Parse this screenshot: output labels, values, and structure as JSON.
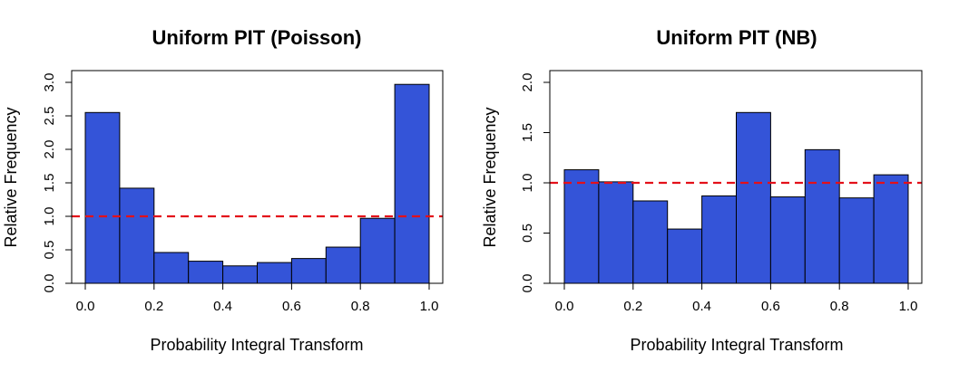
{
  "chart_data": [
    {
      "type": "bar",
      "title": "Uniform PIT (Poisson)",
      "xlabel": "Probability Integral Transform",
      "ylabel": "Relative Frequency",
      "xlim": [
        0,
        1
      ],
      "ylim": [
        0,
        3.0
      ],
      "bin_edges": [
        0.0,
        0.1,
        0.2,
        0.3,
        0.4,
        0.5,
        0.6,
        0.7,
        0.8,
        0.9,
        1.0
      ],
      "values": [
        2.55,
        1.42,
        0.46,
        0.33,
        0.26,
        0.31,
        0.37,
        0.54,
        0.97,
        2.97
      ],
      "reference_line": 1.0,
      "xticks": [
        "0.0",
        "0.2",
        "0.4",
        "0.6",
        "0.8",
        "1.0"
      ],
      "yticks": [
        "0.0",
        "0.5",
        "1.0",
        "1.5",
        "2.0",
        "2.5",
        "3.0"
      ],
      "bar_color": "#3454d8",
      "line_color": "#e3101a"
    },
    {
      "type": "bar",
      "title": "Uniform PIT (NB)",
      "xlabel": "Probability Integral Transform",
      "ylabel": "Relative Frequency",
      "xlim": [
        0,
        1
      ],
      "ylim": [
        0,
        2.0
      ],
      "bin_edges": [
        0.0,
        0.1,
        0.2,
        0.3,
        0.4,
        0.5,
        0.6,
        0.7,
        0.8,
        0.9,
        1.0
      ],
      "values": [
        1.13,
        1.01,
        0.82,
        0.54,
        0.87,
        1.7,
        0.86,
        1.33,
        0.85,
        1.08
      ],
      "reference_line": 1.0,
      "xticks": [
        "0.0",
        "0.2",
        "0.4",
        "0.6",
        "0.8",
        "1.0"
      ],
      "yticks": [
        "0.0",
        "0.5",
        "1.0",
        "1.5",
        "2.0"
      ],
      "bar_color": "#3454d8",
      "line_color": "#e3101a"
    }
  ]
}
